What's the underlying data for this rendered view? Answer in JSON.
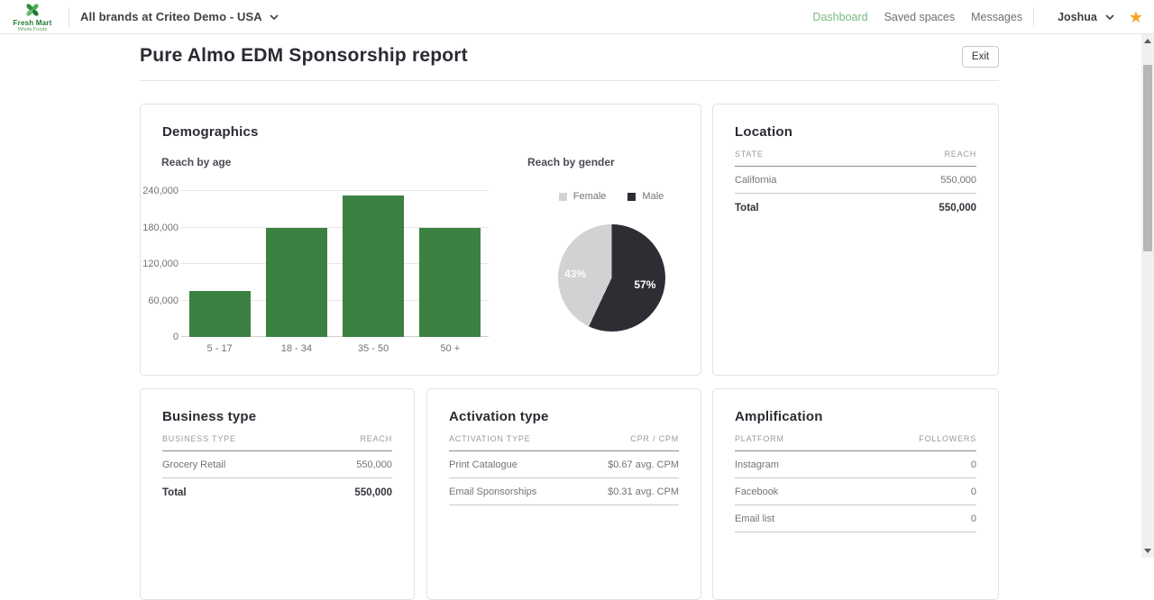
{
  "topnav": {
    "logo_name": "Fresh Mart",
    "logo_tagline": "Whole Foods",
    "brand_selector": "All brands at Criteo Demo - USA",
    "links": [
      {
        "label": "Dashboard",
        "active": true
      },
      {
        "label": "Saved spaces",
        "active": false
      },
      {
        "label": "Messages",
        "active": false
      }
    ],
    "user_name": "Joshua",
    "star_icon": "★"
  },
  "page": {
    "title": "Pure Almo EDM Sponsorship report",
    "exit_label": "Exit"
  },
  "cards": {
    "demographics": {
      "title": "Demographics"
    },
    "location": {
      "title": "Location",
      "columns": [
        "STATE",
        "REACH"
      ],
      "rows": [
        [
          "California",
          "550,000"
        ]
      ],
      "total": [
        "Total",
        "550,000"
      ]
    },
    "business_type": {
      "title": "Business type",
      "columns": [
        "BUSINESS TYPE",
        "REACH"
      ],
      "rows": [
        [
          "Grocery Retail",
          "550,000"
        ]
      ],
      "total": [
        "Total",
        "550,000"
      ]
    },
    "activation_type": {
      "title": "Activation type",
      "columns": [
        "ACTIVATION TYPE",
        "CPR / CPM"
      ],
      "rows": [
        [
          "Print Catalogue",
          "$0.67 avg. CPM"
        ],
        [
          "Email Sponsorships",
          "$0.31 avg. CPM"
        ]
      ]
    },
    "amplification": {
      "title": "Amplification",
      "columns": [
        "PLATFORM",
        "FOLLOWERS"
      ],
      "rows": [
        [
          "Instagram",
          "0"
        ],
        [
          "Facebook",
          "0"
        ],
        [
          "Email list",
          "0"
        ]
      ]
    }
  },
  "chart_data": [
    {
      "type": "bar",
      "title": "Reach by age",
      "categories": [
        "5 - 17",
        "18 - 34",
        "35 - 50",
        "50 +"
      ],
      "values": [
        76000,
        180000,
        233000,
        180000
      ],
      "xlabel": "",
      "ylabel": "",
      "ylim": [
        0,
        240000
      ],
      "yticks": [
        0,
        60000,
        120000,
        180000,
        240000
      ],
      "ytick_labels": [
        "0",
        "60,000",
        "120,000",
        "180,000",
        "240,000"
      ],
      "bar_color": "#3b8142",
      "grid": true,
      "legend": false
    },
    {
      "type": "pie",
      "title": "Reach by gender",
      "slices": [
        {
          "label": "Female",
          "value": 43,
          "pct_label": "43%",
          "color": "#d2d2d4"
        },
        {
          "label": "Male",
          "value": 57,
          "pct_label": "57%",
          "color": "#2d2d33"
        }
      ],
      "start_angle": 0,
      "direction": "clockwise",
      "legend_position": "top"
    }
  ],
  "colors": {
    "brand_green": "#1f7a33",
    "nav_active_green": "#7cb87e",
    "bar_green": "#3b8142",
    "pie_dark": "#2d2d33",
    "pie_light": "#d2d2d4",
    "star_orange": "#f6a71b"
  }
}
